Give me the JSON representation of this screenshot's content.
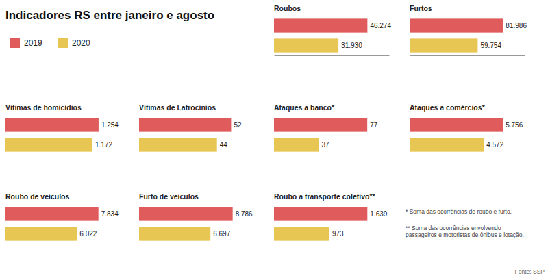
{
  "title": "Indicadores RS entre janeiro e agosto",
  "legend": "upper left",
  "annotations": [
    "* Soma das ocorrências de roubo e furto.",
    "** Soma das ocorrências envolvendo\npassageiros e motoristas de ônibus e lotação.",
    "Fonte: SSP"
  ],
  "chart_data": [
    {
      "type": "bar",
      "orientation": "horizontal",
      "title": "Vítimas de homicídios",
      "categories": [
        null
      ],
      "xlim": [
        0,
        1550
      ],
      "tick_labels": false,
      "data_labels": true,
      "series": [
        {
          "name": "2019",
          "color": "#e05c5c",
          "values": [
            1254
          ],
          "value_labels": [
            "1.254"
          ]
        },
        {
          "name": "2020",
          "color": "#e8c654",
          "values": [
            1172
          ],
          "value_labels": [
            "1.172"
          ]
        }
      ]
    },
    {
      "type": "bar",
      "orientation": "horizontal",
      "title": "Vítimas de Latrocínios",
      "categories": [
        null
      ],
      "xlim": [
        0,
        65
      ],
      "tick_labels": false,
      "data_labels": true,
      "series": [
        {
          "name": "2019",
          "color": "#e05c5c",
          "values": [
            52
          ],
          "value_labels": [
            "52"
          ]
        },
        {
          "name": "2020",
          "color": "#e8c654",
          "values": [
            44
          ],
          "value_labels": [
            "44"
          ]
        }
      ]
    },
    {
      "type": "bar",
      "orientation": "horizontal",
      "title": "Roubos",
      "categories": [
        null
      ],
      "xlim": [
        0,
        57000
      ],
      "tick_labels": false,
      "data_labels": true,
      "series": [
        {
          "name": "2019",
          "color": "#e05c5c",
          "values": [
            46274
          ],
          "value_labels": [
            "46.274"
          ]
        },
        {
          "name": "2020",
          "color": "#e8c654",
          "values": [
            31930
          ],
          "value_labels": [
            "31.930"
          ]
        }
      ]
    },
    {
      "type": "bar",
      "orientation": "horizontal",
      "title": "Furtos",
      "categories": [
        null
      ],
      "xlim": [
        0,
        101000
      ],
      "tick_labels": false,
      "data_labels": true,
      "series": [
        {
          "name": "2019",
          "color": "#e05c5c",
          "values": [
            81986
          ],
          "value_labels": [
            "81.986"
          ]
        },
        {
          "name": "2020",
          "color": "#e8c654",
          "values": [
            59754
          ],
          "value_labels": [
            "59.754"
          ]
        }
      ]
    },
    {
      "type": "bar",
      "orientation": "horizontal",
      "title": "Ataques a banco*",
      "categories": [
        null
      ],
      "xlim": [
        0,
        95
      ],
      "tick_labels": false,
      "data_labels": true,
      "series": [
        {
          "name": "2019",
          "color": "#e05c5c",
          "values": [
            77
          ],
          "value_labels": [
            "77"
          ]
        },
        {
          "name": "2020",
          "color": "#e8c654",
          "values": [
            37
          ],
          "value_labels": [
            "37"
          ]
        }
      ]
    },
    {
      "type": "bar",
      "orientation": "horizontal",
      "title": "Ataques a comércios*",
      "categories": [
        null
      ],
      "xlim": [
        0,
        7100
      ],
      "tick_labels": false,
      "data_labels": true,
      "series": [
        {
          "name": "2019",
          "color": "#e05c5c",
          "values": [
            5756
          ],
          "value_labels": [
            "5.756"
          ]
        },
        {
          "name": "2020",
          "color": "#e8c654",
          "values": [
            4572
          ],
          "value_labels": [
            "4.572"
          ]
        }
      ]
    },
    {
      "type": "bar",
      "orientation": "horizontal",
      "title": "Roubo de veículos",
      "categories": [
        null
      ],
      "xlim": [
        0,
        9700
      ],
      "tick_labels": false,
      "data_labels": true,
      "series": [
        {
          "name": "2019",
          "color": "#e05c5c",
          "values": [
            7834
          ],
          "value_labels": [
            "7.834"
          ]
        },
        {
          "name": "2020",
          "color": "#e8c654",
          "values": [
            6022
          ],
          "value_labels": [
            "6.022"
          ]
        }
      ]
    },
    {
      "type": "bar",
      "orientation": "horizontal",
      "title": "Furto de veículos",
      "categories": [
        null
      ],
      "xlim": [
        0,
        10800
      ],
      "tick_labels": false,
      "data_labels": true,
      "series": [
        {
          "name": "2019",
          "color": "#e05c5c",
          "values": [
            8786
          ],
          "value_labels": [
            "8.786"
          ]
        },
        {
          "name": "2020",
          "color": "#e8c654",
          "values": [
            6697
          ],
          "value_labels": [
            "6.697"
          ]
        }
      ]
    },
    {
      "type": "bar",
      "orientation": "horizontal",
      "title": "Roubo a transporte coletivo**",
      "categories": [
        null
      ],
      "xlim": [
        0,
        2020
      ],
      "tick_labels": false,
      "data_labels": true,
      "series": [
        {
          "name": "2019",
          "color": "#e05c5c",
          "values": [
            1639
          ],
          "value_labels": [
            "1.639"
          ]
        },
        {
          "name": "2020",
          "color": "#e8c654",
          "values": [
            973
          ],
          "value_labels": [
            "973"
          ]
        }
      ]
    }
  ]
}
